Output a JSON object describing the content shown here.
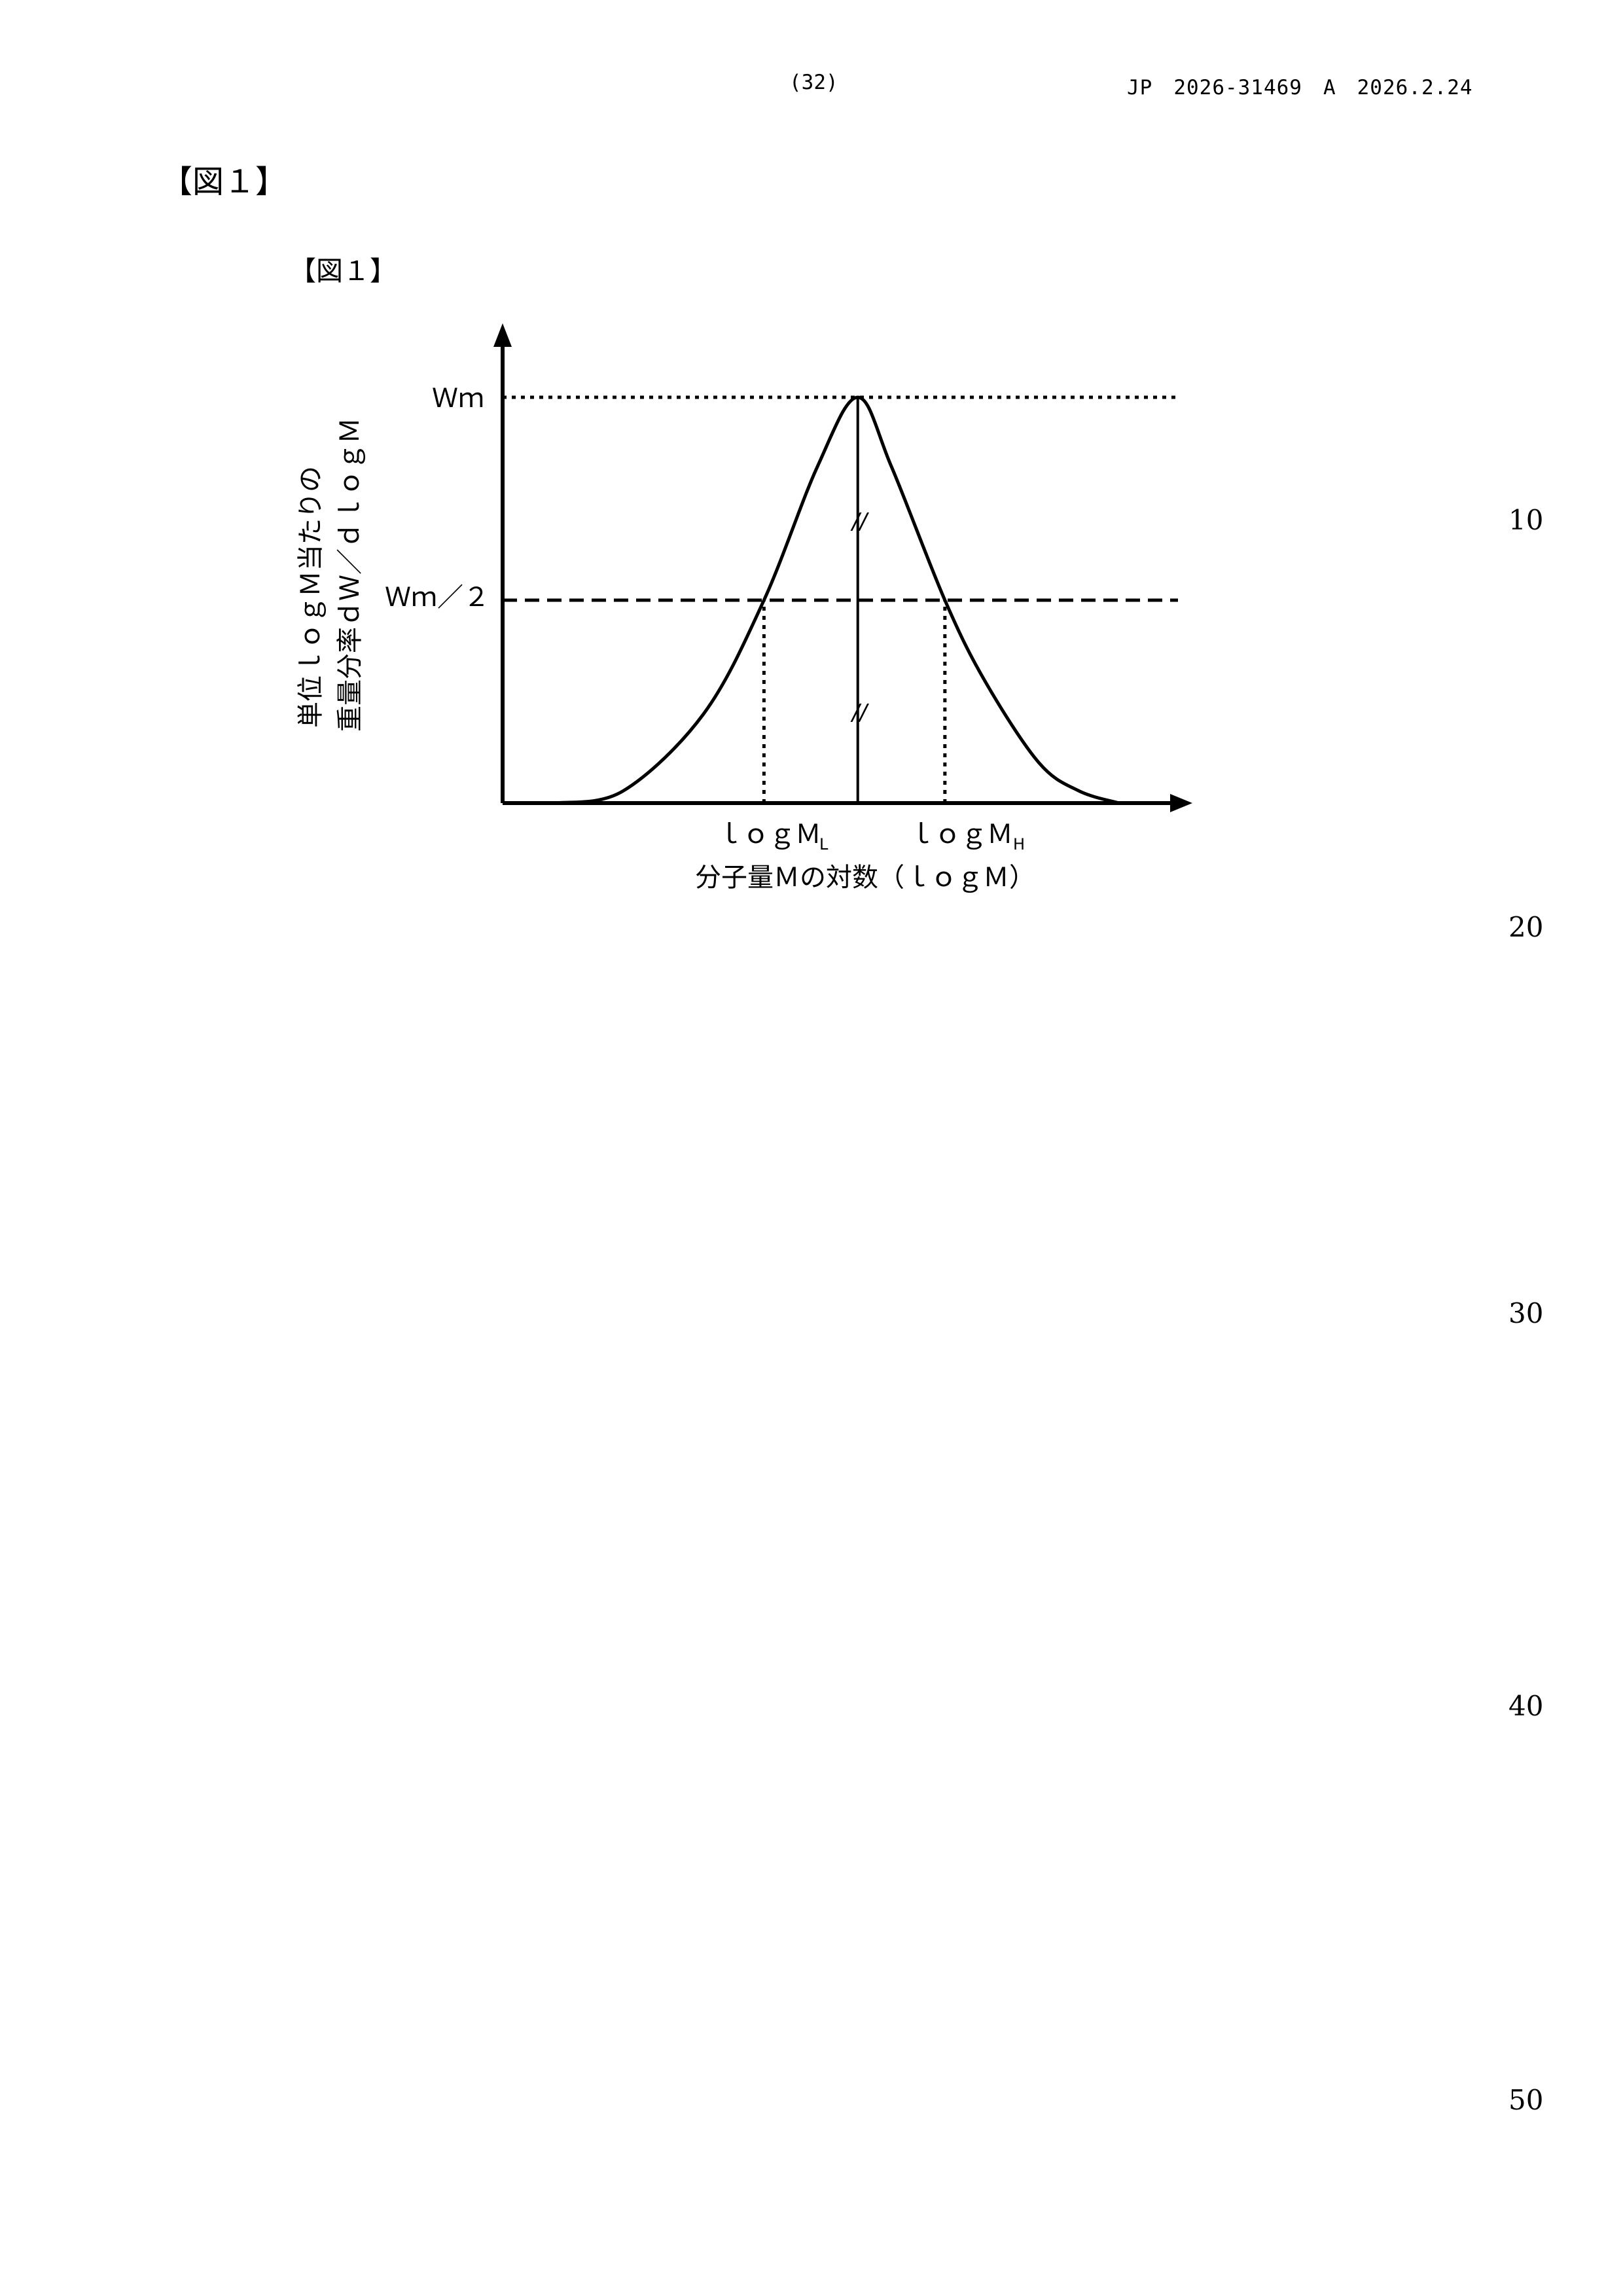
{
  "header": {
    "page_number": "(32)",
    "publication": "JP　2026-31469　A　2026.2.24"
  },
  "figure": {
    "outer_label": "【図１】",
    "inner_label": "【図１】",
    "y_axis_label_line1": "単位ｌｏｇＭ当たりの",
    "y_axis_label_line2": "重量分率ｄＷ／ｄｌｏｇＭ",
    "x_axis_label": "分子量Ｍの対数（ｌｏｇＭ）",
    "peak_label": "Ｗｍ",
    "half_label": "Ｗｍ／２",
    "low_tick_label": "ｌｏｇＭ",
    "low_tick_subscript": "L",
    "high_tick_label": "ｌｏｇＭ",
    "high_tick_subscript": "H",
    "break_mark": "//"
  },
  "line_numbers": [
    "10",
    "20",
    "30",
    "40",
    "50"
  ],
  "chart_data": {
    "type": "line",
    "title": "",
    "xlabel": "分子量Ｍの対数（ｌｏｇＭ）",
    "ylabel": "単位ｌｏｇＭ当たりの重量分率ｄＷ／ｄｌｏｇＭ",
    "series": [
      {
        "x": [
          0.08,
          0.18,
          0.3,
          0.39,
          0.47,
          0.53,
          0.58,
          0.66,
          0.72,
          0.8,
          0.86,
          0.92
        ],
        "y": [
          0.0,
          0.03,
          0.22,
          0.5,
          0.83,
          1.0,
          0.83,
          0.5,
          0.3,
          0.1,
          0.03,
          0.0
        ]
      }
    ],
    "reference_lines": [
      {
        "orientation": "horizontal",
        "label": "Ｗｍ",
        "style": "dotted",
        "y": 1.0
      },
      {
        "orientation": "horizontal",
        "label": "Ｗｍ／２",
        "style": "dashed",
        "y": 0.5
      },
      {
        "orientation": "vertical",
        "label": "ｌｏｇＭL",
        "style": "dotted",
        "x": 0.39
      },
      {
        "orientation": "vertical",
        "label": "ｌｏｇＭH",
        "style": "dotted",
        "x": 0.66
      },
      {
        "orientation": "vertical",
        "label": "",
        "style": "solid",
        "x": 0.53
      }
    ],
    "grid": false,
    "ticks_numeric": false
  }
}
